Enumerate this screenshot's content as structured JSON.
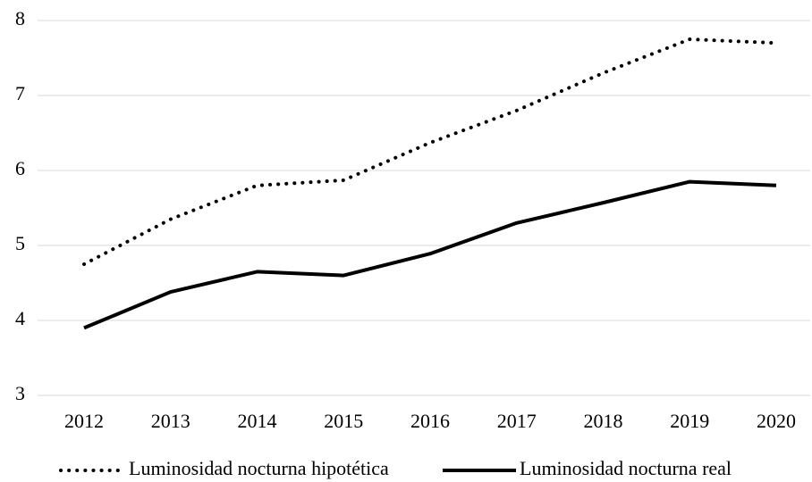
{
  "chart_data": {
    "type": "line",
    "categories": [
      "2012",
      "2013",
      "2014",
      "2015",
      "2016",
      "2017",
      "2018",
      "2019",
      "2020"
    ],
    "series": [
      {
        "name": "Luminosidad nocturna hipotética",
        "color": "#000000",
        "dash": "dotted",
        "values": [
          4.75,
          5.35,
          5.8,
          5.87,
          6.37,
          6.8,
          7.3,
          7.75,
          7.7
        ]
      },
      {
        "name": "Luminosidad nocturna real",
        "color": "#000000",
        "dash": "solid",
        "values": [
          3.9,
          4.38,
          4.65,
          4.6,
          4.89,
          5.3,
          5.57,
          5.85,
          5.8
        ]
      }
    ],
    "ylim": [
      3,
      8
    ],
    "yticks": [
      3,
      4,
      5,
      6,
      7,
      8
    ],
    "grid": true,
    "legend": "bottom"
  }
}
